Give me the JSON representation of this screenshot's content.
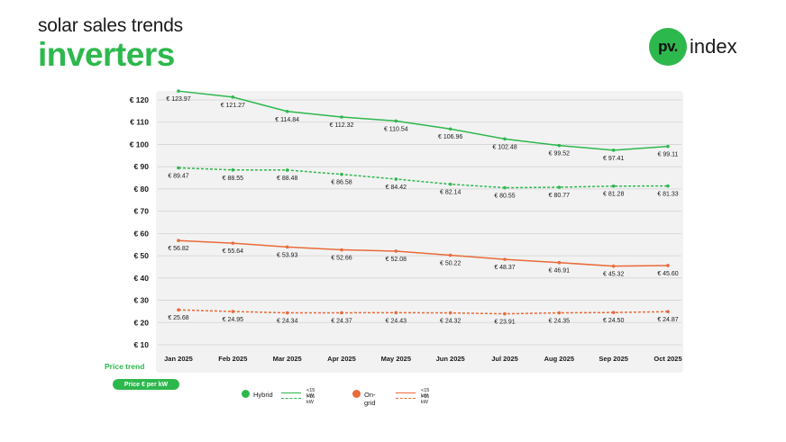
{
  "header": {
    "subtitle": "solar sales trends",
    "title": "inverters"
  },
  "logo": {
    "mark": "pv.",
    "word": "index"
  },
  "colors": {
    "green": "#2db84d",
    "orange": "#ea6a3a",
    "grid": "#d2d2d2",
    "panel": "#f2f2f2"
  },
  "footer": {
    "price_trend": "Price trend",
    "unit_badge": "Price € per kW"
  },
  "legend": {
    "groups": [
      {
        "name": "Hybrid",
        "color": "#2db84d",
        "solid_label": "<15 kW",
        "dashed_label": ">15 kW"
      },
      {
        "name": "On-grid",
        "color": "#ea6a3a",
        "solid_label": "<15 kW",
        "dashed_label": ">15 kW"
      }
    ]
  },
  "chart_data": {
    "type": "line",
    "title": "inverters",
    "ylabel": "Price € per kW",
    "ylim": [
      10,
      120
    ],
    "y_ticks": [
      "€ 10",
      "€ 20",
      "€ 30",
      "€ 40",
      "€ 50",
      "€ 60",
      "€ 70",
      "€ 80",
      "€ 90",
      "€ 100",
      "€ 110",
      "€ 120"
    ],
    "y_tick_values": [
      10,
      20,
      30,
      40,
      50,
      60,
      70,
      80,
      90,
      100,
      110,
      120
    ],
    "categories": [
      "Jan 2025",
      "Feb 2025",
      "Mar 2025",
      "Apr 2025",
      "May 2025",
      "Jun 2025",
      "Jul 2025",
      "Aug 2025",
      "Sep 2025",
      "Oct 2025"
    ],
    "series": [
      {
        "name": "Hybrid <15 kW",
        "color": "#2db84d",
        "dashed": false,
        "values": [
          123.97,
          121.27,
          114.84,
          112.32,
          110.54,
          106.96,
          102.48,
          99.52,
          97.41,
          99.11
        ],
        "labels": [
          "€ 123.97",
          "€ 121.27",
          "€ 114.84",
          "€ 112.32",
          "€ 110.54",
          "€ 106.96",
          "€ 102.48",
          "€ 99.52",
          "€ 97.41",
          "€ 99.11"
        ]
      },
      {
        "name": "Hybrid >15 kW",
        "color": "#2db84d",
        "dashed": true,
        "values": [
          89.47,
          88.55,
          88.48,
          86.58,
          84.42,
          82.14,
          80.55,
          80.77,
          81.28,
          81.33
        ],
        "labels": [
          "€ 89.47",
          "€ 88.55",
          "€ 88.48",
          "€ 86.58",
          "€ 84.42",
          "€ 82.14",
          "€ 80.55",
          "€ 80.77",
          "€ 81.28",
          "€ 81.33"
        ]
      },
      {
        "name": "On-grid <15 kW",
        "color": "#ea6a3a",
        "dashed": false,
        "values": [
          56.82,
          55.64,
          53.93,
          52.66,
          52.08,
          50.22,
          48.37,
          46.91,
          45.32,
          45.6
        ],
        "labels": [
          "€ 56.82",
          "€ 55.64",
          "€ 53.93",
          "€ 52.66",
          "€ 52.08",
          "€ 50.22",
          "€ 48.37",
          "€ 46.91",
          "€ 45.32",
          "€ 45.60"
        ]
      },
      {
        "name": "On-grid >15 kW",
        "color": "#ea6a3a",
        "dashed": true,
        "values": [
          25.68,
          24.95,
          24.34,
          24.37,
          24.43,
          24.32,
          23.91,
          24.35,
          24.5,
          24.87
        ],
        "labels": [
          "€ 25.68",
          "€ 24.95",
          "€ 24.34",
          "€ 24.37",
          "€ 24.43",
          "€ 24.32",
          "€ 23.91",
          "€ 24.35",
          "€ 24.50",
          "€ 24.87"
        ]
      }
    ]
  }
}
